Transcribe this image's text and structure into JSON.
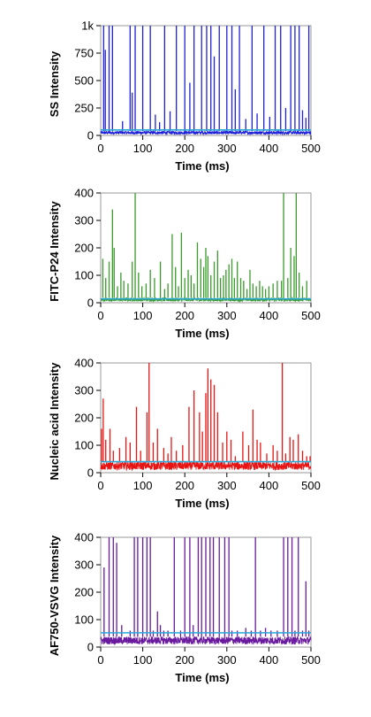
{
  "chart_data": [
    {
      "type": "line",
      "ylabel": "SS Intensity",
      "xlabel": "Time (ms)",
      "xlim": [
        0,
        500
      ],
      "ylim": [
        0,
        1000
      ],
      "xticks": [
        0,
        100,
        200,
        300,
        400,
        500
      ],
      "xtick_labels": [
        "0",
        "100",
        "200",
        "300",
        "400",
        "500"
      ],
      "yticks": [
        0,
        250,
        500,
        750,
        1000
      ],
      "ytick_labels": [
        "0",
        "250",
        "500",
        "750",
        "1k"
      ],
      "grid": false,
      "series": [
        {
          "color": "#1f1fd9",
          "baseline": [
            10,
            40
          ],
          "threshold": 50,
          "threshold_color": "#29a8d8",
          "peaks": [
            [
              7,
              1000
            ],
            [
              11,
              780
            ],
            [
              20,
              1000
            ],
            [
              28,
              1000
            ],
            [
              52,
              130
            ],
            [
              70,
              1000
            ],
            [
              75,
              390
            ],
            [
              82,
              1000
            ],
            [
              100,
              1000
            ],
            [
              118,
              1000
            ],
            [
              130,
              190
            ],
            [
              140,
              120
            ],
            [
              152,
              1000
            ],
            [
              165,
              220
            ],
            [
              180,
              1000
            ],
            [
              200,
              1000
            ],
            [
              212,
              480
            ],
            [
              222,
              1000
            ],
            [
              240,
              1000
            ],
            [
              252,
              1000
            ],
            [
              262,
              1000
            ],
            [
              270,
              720
            ],
            [
              282,
              1000
            ],
            [
              300,
              1000
            ],
            [
              312,
              1000
            ],
            [
              320,
              420
            ],
            [
              330,
              1000
            ],
            [
              345,
              150
            ],
            [
              360,
              1000
            ],
            [
              372,
              200
            ],
            [
              388,
              1000
            ],
            [
              402,
              170
            ],
            [
              415,
              1000
            ],
            [
              428,
              1000
            ],
            [
              440,
              250
            ],
            [
              452,
              1000
            ],
            [
              462,
              1000
            ],
            [
              472,
              1000
            ],
            [
              480,
              230
            ],
            [
              488,
              160
            ],
            [
              495,
              1000
            ]
          ]
        }
      ]
    },
    {
      "type": "line",
      "ylabel": "FITC-P24 Intensity",
      "xlabel": "Time (ms)",
      "xlim": [
        0,
        500
      ],
      "ylim": [
        0,
        400
      ],
      "xticks": [
        0,
        100,
        200,
        300,
        400,
        500
      ],
      "xtick_labels": [
        "0",
        "100",
        "200",
        "300",
        "400",
        "500"
      ],
      "yticks": [
        0,
        100,
        200,
        300,
        400
      ],
      "ytick_labels": [
        "0",
        "100",
        "200",
        "300",
        "400"
      ],
      "grid": false,
      "series": [
        {
          "color": "#3a9a2c",
          "baseline": [
            5,
            18
          ],
          "threshold": 14,
          "threshold_color": "#29a8d8",
          "peaks": [
            [
              5,
              160
            ],
            [
              12,
              90
            ],
            [
              20,
              150
            ],
            [
              28,
              340
            ],
            [
              32,
              200
            ],
            [
              40,
              60
            ],
            [
              48,
              110
            ],
            [
              55,
              80
            ],
            [
              65,
              70
            ],
            [
              75,
              150
            ],
            [
              82,
              400
            ],
            [
              90,
              110
            ],
            [
              98,
              60
            ],
            [
              108,
              70
            ],
            [
              118,
              120
            ],
            [
              128,
              90
            ],
            [
              142,
              150
            ],
            [
              152,
              50
            ],
            [
              160,
              70
            ],
            [
              170,
              250
            ],
            [
              178,
              130
            ],
            [
              185,
              60
            ],
            [
              192,
              255
            ],
            [
              200,
              90
            ],
            [
              208,
              120
            ],
            [
              215,
              100
            ],
            [
              222,
              70
            ],
            [
              230,
              220
            ],
            [
              238,
              160
            ],
            [
              245,
              130
            ],
            [
              250,
              200
            ],
            [
              255,
              170
            ],
            [
              262,
              100
            ],
            [
              270,
              150
            ],
            [
              278,
              190
            ],
            [
              285,
              90
            ],
            [
              292,
              100
            ],
            [
              298,
              120
            ],
            [
              305,
              140
            ],
            [
              312,
              160
            ],
            [
              318,
              90
            ],
            [
              325,
              150
            ],
            [
              333,
              90
            ],
            [
              340,
              80
            ],
            [
              348,
              50
            ],
            [
              355,
              120
            ],
            [
              362,
              70
            ],
            [
              370,
              60
            ],
            [
              378,
              80
            ],
            [
              385,
              60
            ],
            [
              392,
              50
            ],
            [
              400,
              60
            ],
            [
              410,
              70
            ],
            [
              420,
              80
            ],
            [
              430,
              80
            ],
            [
              435,
              400
            ],
            [
              445,
              90
            ],
            [
              452,
              200
            ],
            [
              460,
              170
            ],
            [
              465,
              400
            ],
            [
              472,
              110
            ],
            [
              480,
              60
            ],
            [
              490,
              80
            ]
          ]
        }
      ]
    },
    {
      "type": "line",
      "ylabel": "Nucleic acid Intensity",
      "xlabel": "Time (ms)",
      "xlim": [
        0,
        500
      ],
      "ylim": [
        0,
        400
      ],
      "xticks": [
        0,
        100,
        200,
        300,
        400,
        500
      ],
      "xtick_labels": [
        "0",
        "100",
        "200",
        "300",
        "400",
        "500"
      ],
      "yticks": [
        0,
        100,
        200,
        300,
        400
      ],
      "ytick_labels": [
        "0",
        "100",
        "200",
        "300",
        "400"
      ],
      "grid": false,
      "series": [
        {
          "color": "#e81414",
          "baseline": [
            10,
            40
          ],
          "threshold": 40,
          "threshold_color": "#29a8d8",
          "peaks": [
            [
              2,
              160
            ],
            [
              6,
              270
            ],
            [
              12,
              120
            ],
            [
              22,
              160
            ],
            [
              30,
              80
            ],
            [
              45,
              90
            ],
            [
              60,
              130
            ],
            [
              70,
              110
            ],
            [
              85,
              240
            ],
            [
              95,
              80
            ],
            [
              110,
              220
            ],
            [
              115,
              400
            ],
            [
              125,
              110
            ],
            [
              135,
              160
            ],
            [
              150,
              90
            ],
            [
              160,
              70
            ],
            [
              168,
              130
            ],
            [
              180,
              80
            ],
            [
              195,
              100
            ],
            [
              210,
              240
            ],
            [
              222,
              300
            ],
            [
              235,
              220
            ],
            [
              242,
              150
            ],
            [
              250,
              290
            ],
            [
              255,
              380
            ],
            [
              262,
              340
            ],
            [
              270,
              320
            ],
            [
              278,
              220
            ],
            [
              290,
              110
            ],
            [
              300,
              150
            ],
            [
              310,
              120
            ],
            [
              320,
              60
            ],
            [
              338,
              150
            ],
            [
              352,
              100
            ],
            [
              362,
              230
            ],
            [
              372,
              120
            ],
            [
              380,
              110
            ],
            [
              395,
              70
            ],
            [
              410,
              100
            ],
            [
              420,
              80
            ],
            [
              432,
              400
            ],
            [
              440,
              70
            ],
            [
              450,
              130
            ],
            [
              458,
              120
            ],
            [
              470,
              140
            ],
            [
              480,
              80
            ],
            [
              490,
              60
            ],
            [
              498,
              60
            ]
          ]
        }
      ]
    },
    {
      "type": "line",
      "ylabel": "AF750-VSVG Intensity",
      "xlabel": "Time (ms)",
      "xlim": [
        0,
        500
      ],
      "ylim": [
        0,
        400
      ],
      "xticks": [
        0,
        100,
        200,
        300,
        400,
        500
      ],
      "xtick_labels": [
        "0",
        "100",
        "200",
        "300",
        "400",
        "500"
      ],
      "yticks": [
        0,
        100,
        200,
        300,
        400
      ],
      "ytick_labels": [
        "0",
        "100",
        "200",
        "300",
        "400"
      ],
      "grid": false,
      "series": [
        {
          "color": "#6a1a9e",
          "baseline": [
            10,
            38
          ],
          "threshold": 52,
          "threshold_color": "#29a8d8",
          "peaks": [
            [
              8,
              290
            ],
            [
              20,
              400
            ],
            [
              30,
              400
            ],
            [
              38,
              380
            ],
            [
              50,
              80
            ],
            [
              70,
              60
            ],
            [
              80,
              400
            ],
            [
              88,
              400
            ],
            [
              100,
              400
            ],
            [
              110,
              400
            ],
            [
              118,
              400
            ],
            [
              125,
              60
            ],
            [
              135,
              130
            ],
            [
              142,
              80
            ],
            [
              150,
              60
            ],
            [
              160,
              60
            ],
            [
              175,
              400
            ],
            [
              190,
              60
            ],
            [
              200,
              400
            ],
            [
              212,
              400
            ],
            [
              220,
              80
            ],
            [
              232,
              400
            ],
            [
              240,
              400
            ],
            [
              250,
              400
            ],
            [
              260,
              400
            ],
            [
              268,
              400
            ],
            [
              282,
              400
            ],
            [
              295,
              400
            ],
            [
              305,
              400
            ],
            [
              312,
              60
            ],
            [
              325,
              60
            ],
            [
              345,
              70
            ],
            [
              358,
              60
            ],
            [
              368,
              400
            ],
            [
              380,
              60
            ],
            [
              392,
              70
            ],
            [
              405,
              60
            ],
            [
              420,
              60
            ],
            [
              435,
              400
            ],
            [
              445,
              400
            ],
            [
              455,
              400
            ],
            [
              462,
              60
            ],
            [
              470,
              400
            ],
            [
              480,
              60
            ],
            [
              488,
              240
            ],
            [
              495,
              60
            ]
          ]
        }
      ]
    }
  ]
}
